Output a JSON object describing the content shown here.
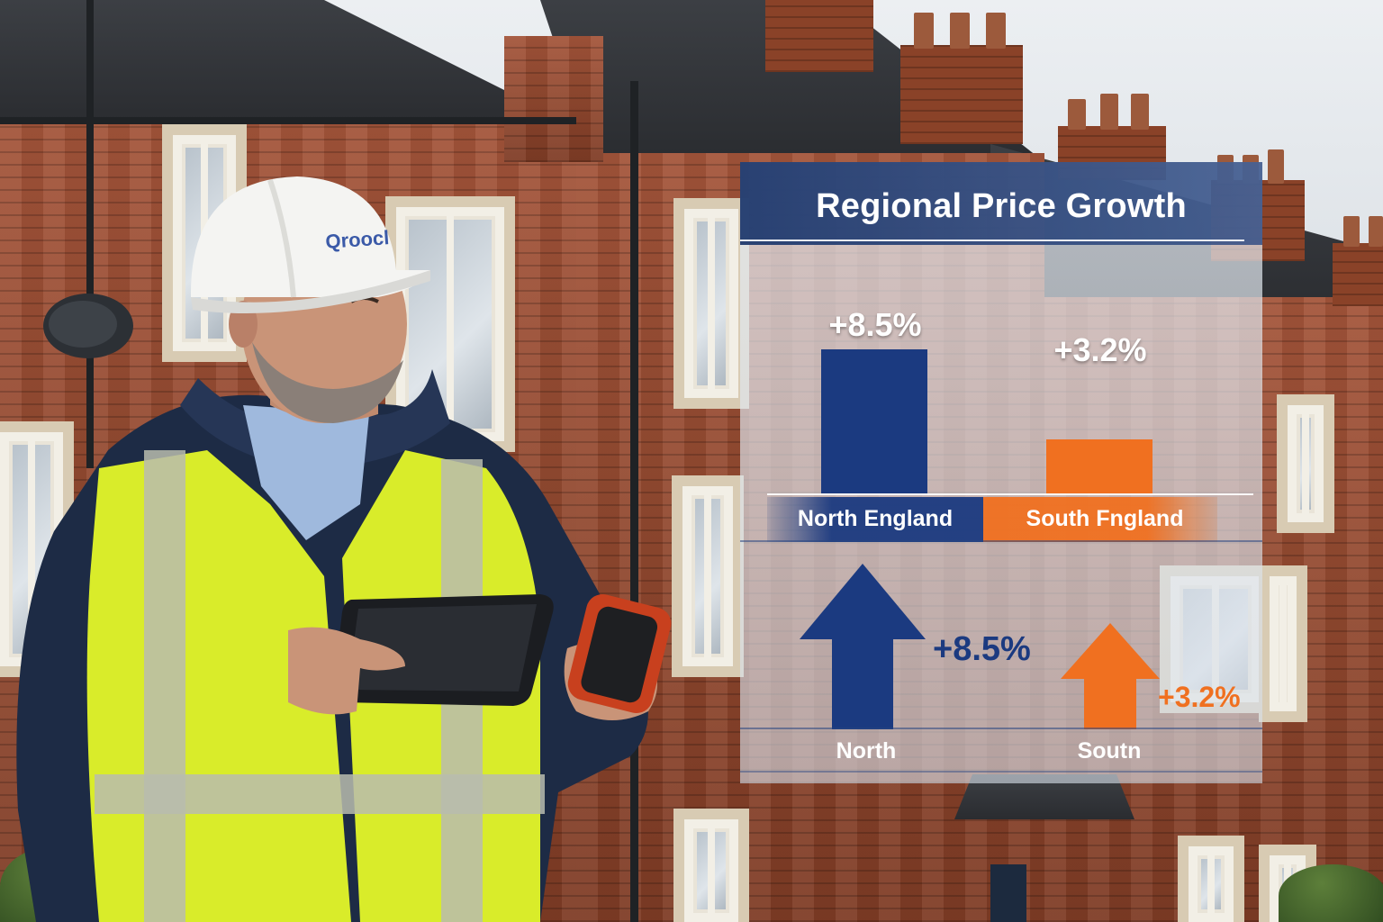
{
  "infographic": {
    "title": "Regional Price Growth",
    "bars": [
      {
        "region_label": "North England",
        "value_label": "+8.5%",
        "value": 8.5,
        "color": "#1b3a80"
      },
      {
        "region_label": "South Fngland",
        "value_label": "+3.2%",
        "value": 3.2,
        "color": "#f07020"
      }
    ],
    "arrows": [
      {
        "label": "North",
        "value_label": "+8.5%",
        "value": 8.5,
        "color": "#1b3a80"
      },
      {
        "label": "Soutn",
        "value_label": "+3.2%",
        "value": 3.2,
        "color": "#f07020"
      }
    ]
  },
  "scene": {
    "subject": "surveyor-in-hard-hat-and-hi-vis-vest",
    "helmet_text": "Qroocl",
    "colors": {
      "brick": "#9a4b30",
      "vest": "#d9ec2a",
      "jacket": "#1d2b45",
      "helmet": "#f4f4f2"
    }
  }
}
